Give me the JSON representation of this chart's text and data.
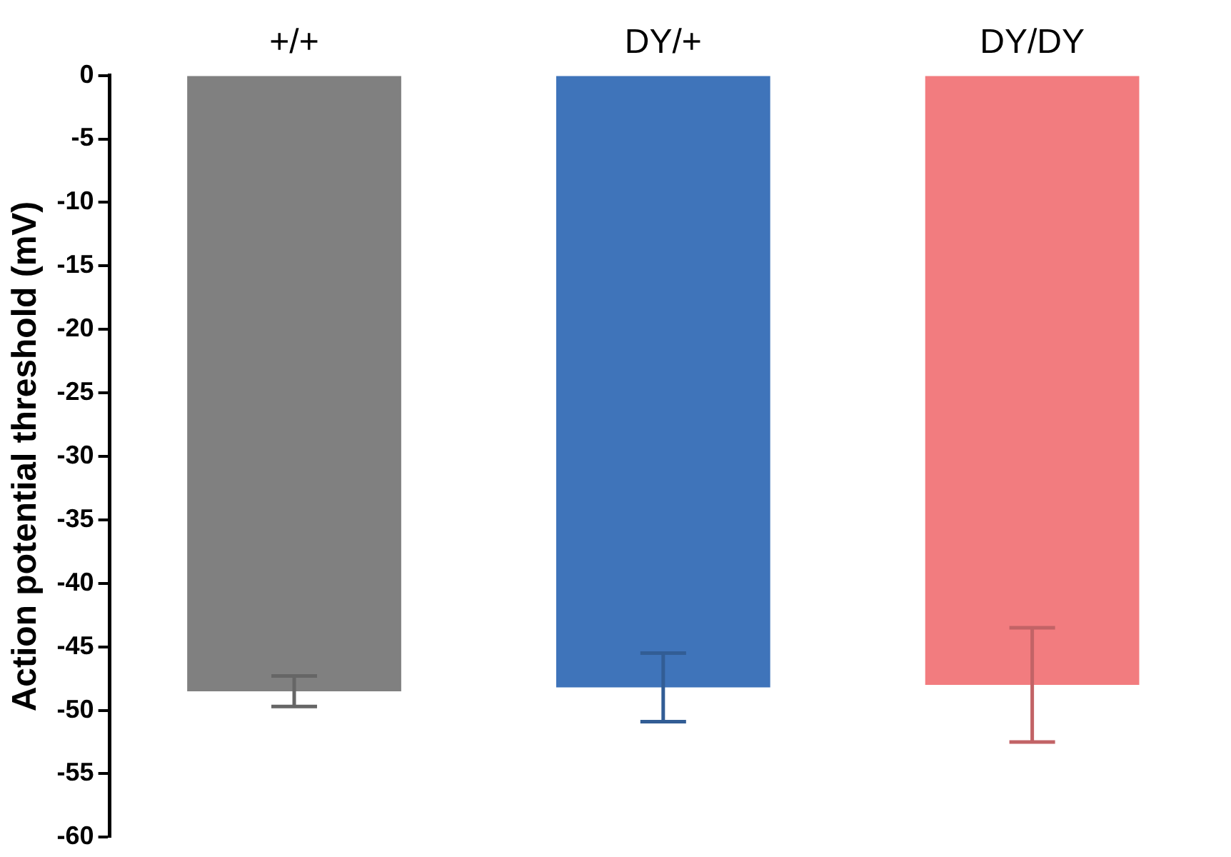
{
  "chart_data": {
    "type": "bar",
    "ylabel": "Action potential threshold (mV)",
    "categories": [
      "+/+",
      "DY/+",
      "DY/DY"
    ],
    "values": [
      -48.5,
      -48.2,
      -48.0
    ],
    "errors": [
      1.2,
      2.7,
      4.5
    ],
    "colors": [
      "#808080",
      "#3f74ba",
      "#f27c7f"
    ],
    "ylim": [
      -60,
      0
    ],
    "yticks": [
      0,
      -5,
      -10,
      -15,
      -20,
      -25,
      -30,
      -35,
      -40,
      -45,
      -50,
      -55,
      -60
    ],
    "grid": false,
    "legend": false
  }
}
